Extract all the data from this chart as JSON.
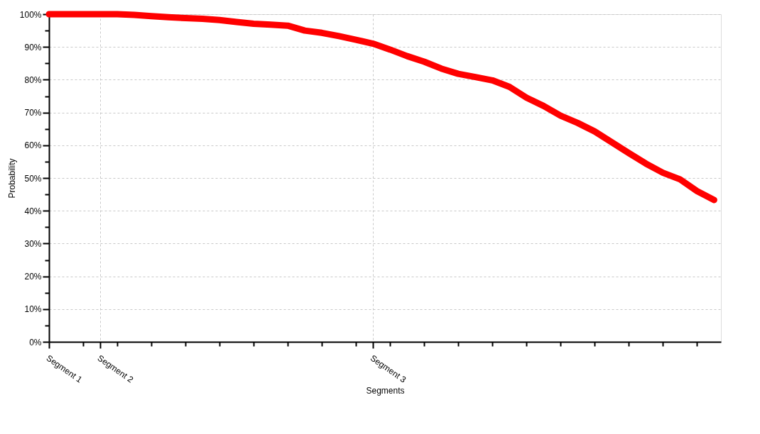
{
  "chart_data": {
    "type": "line",
    "xlabel": "Segments",
    "ylabel": "Probability",
    "categories": [
      "Segment 1",
      null,
      null,
      "Segment 2",
      null,
      null,
      null,
      null,
      null,
      null,
      null,
      null,
      null,
      null,
      null,
      null,
      null,
      null,
      null,
      "Segment 3",
      null,
      null,
      null,
      null,
      null,
      null,
      null,
      null,
      null,
      null,
      null,
      null,
      null,
      null,
      null,
      null,
      null,
      null,
      null,
      null
    ],
    "series": [
      {
        "color": "#ff0000",
        "values": [
          100,
          100,
          100,
          100,
          100,
          99.8,
          99.4,
          99.1,
          98.8,
          98.6,
          98.2,
          97.6,
          97.1,
          96.8,
          96.5,
          95.0,
          94.3,
          93.3,
          92.2,
          91.0,
          89.2,
          87.2,
          85.5,
          83.4,
          81.8,
          80.8,
          79.8,
          77.8,
          74.5,
          72.0,
          69.0,
          66.8,
          64.2,
          60.9,
          57.6,
          54.4,
          51.6,
          49.6,
          46.0,
          43.3
        ]
      }
    ],
    "ylim": [
      0,
      100
    ],
    "yticks": [
      {
        "value": 0,
        "label": "0%"
      },
      {
        "value": 5,
        "label": null
      },
      {
        "value": 10,
        "label": "10%"
      },
      {
        "value": 15,
        "label": null
      },
      {
        "value": 20,
        "label": "20%"
      },
      {
        "value": 25,
        "label": null
      },
      {
        "value": 30,
        "label": "30%"
      },
      {
        "value": 35,
        "label": null
      },
      {
        "value": 40,
        "label": "40%"
      },
      {
        "value": 45,
        "label": null
      },
      {
        "value": 50,
        "label": "50%"
      },
      {
        "value": 55,
        "label": null
      },
      {
        "value": 60,
        "label": "60%"
      },
      {
        "value": 65,
        "label": null
      },
      {
        "value": 70,
        "label": "70%"
      },
      {
        "value": 75,
        "label": null
      },
      {
        "value": 80,
        "label": "80%"
      },
      {
        "value": 85,
        "label": null
      },
      {
        "value": 90,
        "label": "90%"
      },
      {
        "value": 95,
        "label": null
      },
      {
        "value": 100,
        "label": "100%"
      }
    ],
    "grid": true,
    "line_style": "solid"
  }
}
